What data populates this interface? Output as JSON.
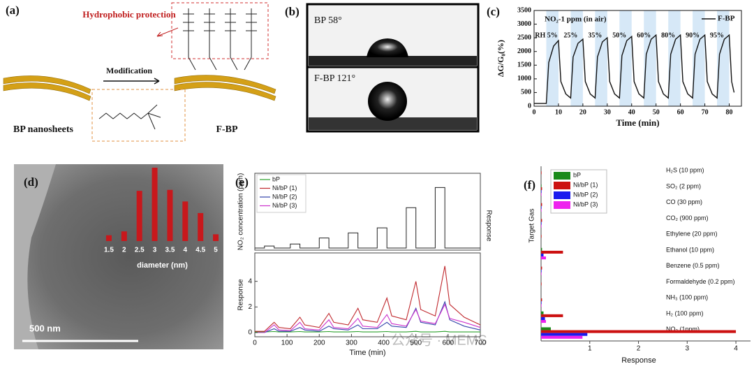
{
  "panel_a": {
    "label": "(a)",
    "protection": "Hydrophobic protection",
    "arrow": "Modification",
    "left": "BP nanosheets",
    "right": "F-BP"
  },
  "panel_b": {
    "label": "(b)",
    "top": "BP 58°",
    "bottom": "F-BP 121°"
  },
  "watermark": "公众号 · MEMS",
  "chart_data": [
    {
      "type": "line",
      "label": "(c)",
      "annotation": "NO₂-1 ppm (in air)",
      "x_label": "Time (min)",
      "y_label": "ΔG/G₀(%)",
      "rh_labels": [
        "RH 5%",
        "25%",
        "35%",
        "50%",
        "60%",
        "80%",
        "90%",
        "95%"
      ],
      "bands": [
        {
          "start": 5,
          "end": 10
        },
        {
          "start": 15,
          "end": 20
        },
        {
          "start": 25,
          "end": 30
        },
        {
          "start": 35,
          "end": 40
        },
        {
          "start": 45,
          "end": 50
        },
        {
          "start": 55,
          "end": 60
        },
        {
          "start": 65,
          "end": 70
        },
        {
          "start": 75,
          "end": 80
        }
      ],
      "band_color": "#d6e8f7",
      "x": [
        0,
        4,
        5,
        6,
        8,
        10,
        11,
        13,
        15,
        16,
        18,
        20,
        21,
        23,
        25,
        26,
        28,
        30,
        31,
        33,
        35,
        36,
        38,
        40,
        41,
        43,
        45,
        46,
        48,
        50,
        51,
        53,
        55,
        56,
        58,
        60,
        61,
        63,
        65,
        66,
        68,
        70,
        71,
        73,
        75,
        76,
        78,
        80,
        81,
        82
      ],
      "series": [
        {
          "name": "F-BP",
          "color": "#111111",
          "values": [
            100,
            100,
            100,
            1600,
            2200,
            2400,
            900,
            450,
            300,
            1800,
            2300,
            2450,
            900,
            450,
            300,
            1800,
            2350,
            2500,
            900,
            450,
            300,
            1850,
            2400,
            2550,
            900,
            450,
            300,
            1900,
            2450,
            2600,
            900,
            450,
            300,
            1900,
            2450,
            2600,
            900,
            450,
            300,
            1900,
            2450,
            2600,
            900,
            450,
            300,
            1900,
            2450,
            2600,
            900,
            500
          ]
        }
      ],
      "xlim": [
        0,
        85
      ],
      "xticks": [
        0,
        10,
        20,
        30,
        40,
        50,
        60,
        70,
        80
      ],
      "ylim": [
        0,
        3500
      ],
      "yticks": [
        0,
        500,
        1000,
        1500,
        2000,
        2500,
        3000,
        3500
      ]
    },
    {
      "type": "bar",
      "label": "(d)",
      "x_label": "diameter (nm)",
      "scale_bar": "500 nm",
      "categories": [
        "1.5",
        "2",
        "2.5",
        "3",
        "3.5",
        "4",
        "4.5",
        "5"
      ],
      "values": [
        6,
        10,
        52,
        76,
        53,
        41,
        29,
        7
      ],
      "color": "#c8181c"
    },
    {
      "type": "line",
      "label": "(e)",
      "x_label": "Time (min)",
      "y_label_top": "NO₂ concentration (ppm)",
      "y_label_bottom": "Response",
      "y2_label": "Response",
      "concentration": {
        "color": "#222222",
        "x": [
          0,
          30,
          30,
          60,
          60,
          110,
          110,
          140,
          140,
          200,
          200,
          230,
          230,
          290,
          290,
          320,
          320,
          380,
          380,
          410,
          410,
          470,
          470,
          500,
          500,
          560,
          560,
          590,
          590,
          700
        ],
        "values": [
          0,
          0,
          0.1,
          0.1,
          0,
          0,
          0.2,
          0.2,
          0,
          0,
          0.5,
          0.5,
          0,
          0,
          0.75,
          0.75,
          0,
          0,
          1,
          1,
          0,
          0,
          2,
          2,
          0,
          0,
          3,
          3,
          0,
          0
        ]
      },
      "ylim_top": [
        0,
        3.5
      ],
      "x": [
        0,
        30,
        60,
        75,
        110,
        140,
        155,
        200,
        230,
        245,
        290,
        320,
        335,
        380,
        410,
        425,
        470,
        500,
        515,
        560,
        590,
        605,
        650,
        700
      ],
      "series": [
        {
          "name": "bP",
          "color": "#2ca02c",
          "values": [
            0.05,
            0.05,
            0.08,
            0.05,
            0.05,
            0.08,
            0.05,
            0.05,
            0.08,
            0.05,
            0.05,
            0.08,
            0.05,
            0.05,
            0.08,
            0.05,
            0.05,
            0.1,
            0.05,
            0.05,
            0.1,
            0.05,
            0.05,
            0.05
          ]
        },
        {
          "name": "Ni/bP (1)",
          "color": "#c0282d",
          "values": [
            0.1,
            0.1,
            0.8,
            0.4,
            0.3,
            1.2,
            0.6,
            0.4,
            1.5,
            0.8,
            0.6,
            1.9,
            1.0,
            0.8,
            2.7,
            1.3,
            1.0,
            4.0,
            1.8,
            1.3,
            5.2,
            2.2,
            1.2,
            0.6
          ]
        },
        {
          "name": "Ni/bP (2)",
          "color": "#3344aa",
          "values": [
            0,
            0,
            0.3,
            0.1,
            0.1,
            0.4,
            0.2,
            0.1,
            0.5,
            0.3,
            0.2,
            0.6,
            0.3,
            0.3,
            0.8,
            0.5,
            0.4,
            1.9,
            0.8,
            0.6,
            2.4,
            1.0,
            0.5,
            0.2
          ]
        },
        {
          "name": "Ni/bP (3)",
          "color": "#cc33cc",
          "values": [
            0,
            0,
            0.6,
            0.2,
            0.15,
            0.8,
            0.3,
            0.2,
            1.0,
            0.4,
            0.3,
            1.1,
            0.5,
            0.4,
            1.4,
            0.7,
            0.5,
            1.8,
            0.9,
            0.7,
            2.2,
            1.1,
            0.8,
            0.4
          ]
        }
      ],
      "xlim": [
        0,
        700
      ],
      "xticks": [
        0,
        100,
        200,
        300,
        400,
        500,
        600,
        700
      ],
      "ylim": [
        0,
        6
      ],
      "yticks": [
        0,
        2,
        4
      ]
    },
    {
      "type": "barh",
      "label": "(f)",
      "x_label": "Response",
      "y_label": "Target Gas",
      "categories": [
        "H₂S (10 ppm)",
        "SO₂ (2 ppm)",
        "CO (30 ppm)",
        "CO₂ (900 ppm)",
        "Ethylene (20 ppm)",
        "Ethanol (10 ppm)",
        "Benzene (0.5 ppm)",
        "Formaldehyde (0.2 ppm)",
        "NH₃ (100 ppm)",
        "H₂ (100 ppm)",
        "NO₂ (1ppm)"
      ],
      "series": [
        {
          "name": "bP",
          "color": "#1a8a1a",
          "values": [
            0,
            0.01,
            0,
            0,
            0,
            0.02,
            0,
            0,
            0,
            0.05,
            0.2
          ]
        },
        {
          "name": "Ni/bP (1)",
          "color": "#cc1111",
          "values": [
            0.01,
            0.02,
            0.02,
            0.02,
            0.01,
            0.45,
            0.02,
            0.01,
            0.02,
            0.45,
            4.0
          ]
        },
        {
          "name": "Ni/bP (2)",
          "color": "#1a1aee",
          "values": [
            0,
            0.01,
            0.01,
            0.01,
            0,
            0.05,
            0.01,
            0,
            0.01,
            0.08,
            0.95
          ]
        },
        {
          "name": "Ni/bP (3)",
          "color": "#ee22ee",
          "values": [
            0,
            0.01,
            0.01,
            0.01,
            0,
            0.1,
            0.01,
            0,
            0.01,
            0.1,
            0.85
          ]
        }
      ],
      "xlim": [
        0,
        4.3
      ],
      "xticks": [
        1,
        2,
        3,
        4
      ]
    }
  ]
}
